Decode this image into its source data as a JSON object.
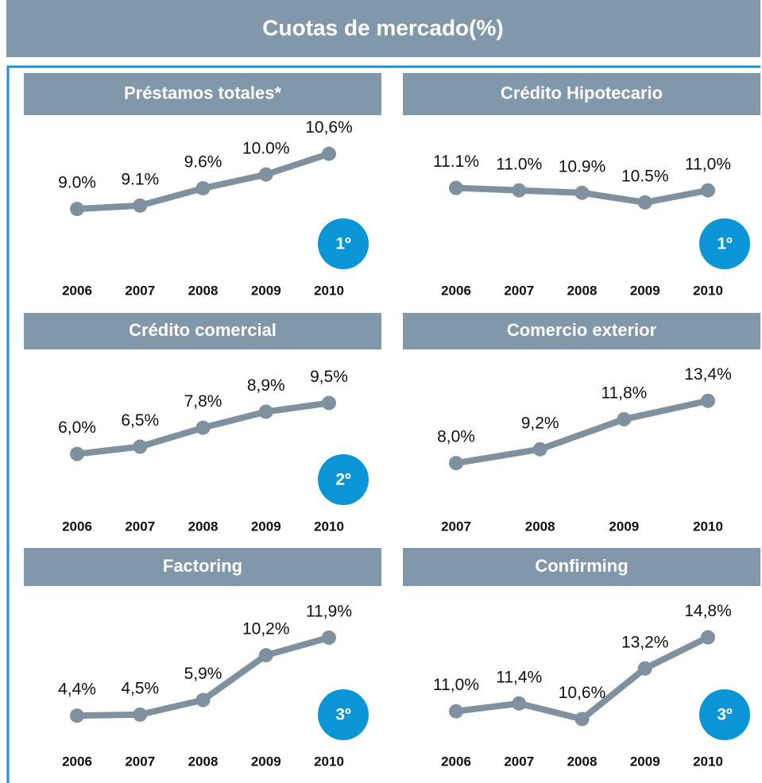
{
  "title": "Cuotas de mercado(%)",
  "chart_data": [
    {
      "type": "line",
      "title": "Préstamos totales*",
      "categories": [
        "2006",
        "2007",
        "2008",
        "2009",
        "2010"
      ],
      "values": [
        9.0,
        9.1,
        9.6,
        10.0,
        10.6
      ],
      "value_labels": [
        "9.0%",
        "9.1%",
        "9.6%",
        "10.0%",
        "10,6%"
      ],
      "color": "#7f919e",
      "ylim": [
        7.3,
        10.8
      ],
      "rank": "1º"
    },
    {
      "type": "line",
      "title": "Crédito Hipotecario",
      "categories": [
        "2006",
        "2007",
        "2008",
        "2009",
        "2010"
      ],
      "values": [
        11.1,
        11.0,
        10.9,
        10.5,
        11.0
      ],
      "value_labels": [
        "11.1%",
        "11.0%",
        "10.9%",
        "10.5%",
        "11,0%"
      ],
      "color": "#7f919e",
      "ylim": [
        7.8,
        12.8
      ],
      "rank": "1º"
    },
    {
      "type": "line",
      "title": "Crédito comercial",
      "categories": [
        "2006",
        "2007",
        "2008",
        "2009",
        "2010"
      ],
      "values": [
        6.0,
        6.5,
        7.8,
        8.9,
        9.5
      ],
      "value_labels": [
        "6,0%",
        "6,5%",
        "7,8%",
        "8,9%",
        "9,5%"
      ],
      "color": "#7f919e",
      "ylim": [
        2.6,
        11.0
      ],
      "rank": "2º"
    },
    {
      "type": "line",
      "title": "Comercio exterior",
      "categories": [
        "2007",
        "2008",
        "2009",
        "2010"
      ],
      "values": [
        8.0,
        9.2,
        11.8,
        13.4
      ],
      "value_labels": [
        "8,0%",
        "9,2%",
        "11,8%",
        "13,4%"
      ],
      "color": "#7f919e",
      "ylim": [
        4.5,
        15.1
      ]
    },
    {
      "type": "line",
      "title": "Factoring",
      "categories": [
        "2006",
        "2007",
        "2008",
        "2009",
        "2010"
      ],
      "values": [
        4.4,
        4.5,
        5.9,
        10.2,
        11.9
      ],
      "value_labels": [
        "4,4%",
        "4,5%",
        "5,9%",
        "10,2%",
        "11,9%"
      ],
      "color": "#7f919e",
      "ylim": [
        2.2,
        13.8
      ],
      "rank": "3º"
    },
    {
      "type": "line",
      "title": "Confirming",
      "categories": [
        "2006",
        "2007",
        "2008",
        "2009",
        "2010"
      ],
      "values": [
        11.0,
        11.4,
        10.6,
        13.2,
        14.8
      ],
      "value_labels": [
        "11,0%",
        "11,4%",
        "10,6%",
        "13,2%",
        "14,8%"
      ],
      "color": "#7f919e",
      "ylim": [
        9.6,
        15.8
      ],
      "rank": "3º"
    }
  ]
}
